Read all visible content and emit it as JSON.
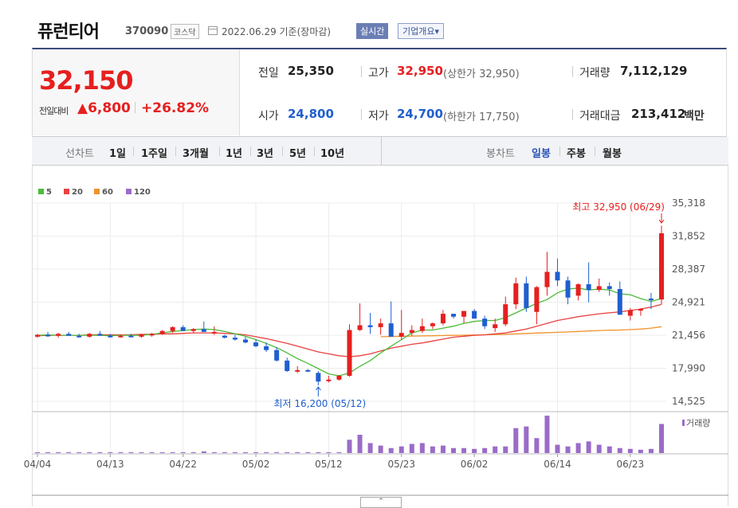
{
  "header": {
    "stock_name": "퓨런티어",
    "stock_code": "370090",
    "market": "코스닥",
    "date_text": "2022.06.29 기준(장마감)",
    "realtime_label": "실시간",
    "company_label": "기업개요▾"
  },
  "summary": {
    "price": "32,150",
    "change_label": "전일대비",
    "change": "▲6,800",
    "change_pct": "+26.82%",
    "prev_label": "전일",
    "prev": "25,350",
    "open_label": "시가",
    "open": "24,800",
    "high_label": "고가",
    "high": "32,950",
    "upper_limit": "(상한가 32,950)",
    "low_label": "저가",
    "low": "24,700",
    "lower_limit": "(하한가 17,750)",
    "volume_label": "거래량",
    "volume": "7,112,129",
    "amount_label": "거래대금",
    "amount": "213,412",
    "amount_unit": "백만"
  },
  "tabs": {
    "line_chart_label": "선차트",
    "line_periods": [
      "1일",
      "1주일",
      "3개월",
      "1년",
      "3년",
      "5년",
      "10년"
    ],
    "candle_chart_label": "봉차트",
    "candle_periods": [
      "일봉",
      "주봉",
      "월봉"
    ]
  },
  "colors": {
    "up": "#e61f1f",
    "down": "#1f5fcf",
    "ma5": "#4cbb3a",
    "ma20": "#e8413f",
    "ma60": "#f0922b",
    "ma120": "#9b6cc8",
    "volume": "#9b6cc8"
  },
  "chart_data": {
    "type": "candlestick",
    "legend": [
      "5",
      "20",
      "60",
      "120"
    ],
    "ylim": [
      14525,
      35318
    ],
    "y_ticks": [
      "35,318",
      "31,852",
      "28,387",
      "24,921",
      "21,456",
      "17,990",
      "14,525"
    ],
    "y_tick_values": [
      35318,
      31852,
      28387,
      24921,
      21456,
      17990,
      14525
    ],
    "x_tick_labels": [
      "04/04",
      "04/13",
      "04/22",
      "05/02",
      "05/12",
      "05/23",
      "06/02",
      "06/14",
      "06/23"
    ],
    "x_tick_index": [
      0,
      7,
      14,
      21,
      28,
      35,
      42,
      50,
      57
    ],
    "high_annotation": "최고 32,950 (06/29)",
    "low_annotation": "최저 16,200 (05/12)",
    "volume_label": "거래량",
    "ohlc": [
      [
        21300,
        21600,
        21200,
        21500
      ],
      [
        21500,
        21800,
        21300,
        21400
      ],
      [
        21400,
        21700,
        21200,
        21600
      ],
      [
        21600,
        21800,
        21400,
        21400
      ],
      [
        21400,
        21600,
        21200,
        21300
      ],
      [
        21300,
        21700,
        21200,
        21600
      ],
      [
        21600,
        21900,
        21400,
        21400
      ],
      [
        21400,
        21600,
        21200,
        21300
      ],
      [
        21300,
        21500,
        21200,
        21400
      ],
      [
        21400,
        21600,
        21300,
        21300
      ],
      [
        21300,
        21600,
        21200,
        21500
      ],
      [
        21500,
        21700,
        21300,
        21600
      ],
      [
        21600,
        22000,
        21500,
        21900
      ],
      [
        21900,
        22400,
        21700,
        22300
      ],
      [
        22300,
        22500,
        21900,
        21900
      ],
      [
        21900,
        22200,
        21700,
        22100
      ],
      [
        22100,
        22900,
        22000,
        21800
      ],
      [
        21800,
        22400,
        21500,
        21800
      ],
      [
        21400,
        21500,
        21100,
        21200
      ],
      [
        21200,
        21500,
        20900,
        21000
      ],
      [
        21000,
        21300,
        20600,
        20700
      ],
      [
        20700,
        21000,
        20200,
        20300
      ],
      [
        20300,
        20700,
        19700,
        19900
      ],
      [
        19900,
        20200,
        18700,
        18800
      ],
      [
        18800,
        19100,
        17600,
        17700
      ],
      [
        17700,
        18200,
        17500,
        17800
      ],
      [
        17800,
        17900,
        17600,
        17700
      ],
      [
        17500,
        17700,
        16200,
        16600
      ],
      [
        16700,
        17200,
        16500,
        16800
      ],
      [
        16800,
        17300,
        16700,
        17200
      ],
      [
        17200,
        22600,
        17100,
        22000
      ],
      [
        22000,
        24800,
        21900,
        22500
      ],
      [
        22500,
        23800,
        21600,
        22300
      ],
      [
        22300,
        23200,
        21500,
        22700
      ],
      [
        22700,
        25000,
        21400,
        21300
      ],
      [
        21300,
        24100,
        21000,
        21700
      ],
      [
        21700,
        22500,
        21400,
        22000
      ],
      [
        21900,
        23200,
        21700,
        22400
      ],
      [
        22400,
        22800,
        22100,
        22700
      ],
      [
        22700,
        24100,
        22500,
        23700
      ],
      [
        23700,
        23700,
        23200,
        23400
      ],
      [
        23400,
        24000,
        22700,
        24000
      ],
      [
        24000,
        24200,
        23200,
        23200
      ],
      [
        23200,
        23500,
        22100,
        22400
      ],
      [
        22200,
        23200,
        21800,
        22600
      ],
      [
        22600,
        25500,
        22400,
        24700
      ],
      [
        24700,
        27500,
        24200,
        26900
      ],
      [
        26900,
        27600,
        23900,
        24300
      ],
      [
        23900,
        26600,
        22600,
        26500
      ],
      [
        26500,
        30200,
        25600,
        28100
      ],
      [
        28100,
        29500,
        26600,
        27200
      ],
      [
        27200,
        27600,
        24700,
        25400
      ],
      [
        25600,
        26900,
        25100,
        26800
      ],
      [
        26800,
        29100,
        24900,
        26200
      ],
      [
        26200,
        27400,
        26000,
        26600
      ],
      [
        26600,
        27000,
        25600,
        26300
      ],
      [
        26300,
        27100,
        23800,
        23600
      ],
      [
        23500,
        24300,
        23000,
        24100
      ],
      [
        24100,
        24300,
        23500,
        24200
      ],
      [
        25300,
        25900,
        24200,
        25200
      ],
      [
        25200,
        32950,
        24700,
        32150
      ]
    ],
    "volume": [
      1,
      1,
      1,
      1,
      0,
      0,
      1,
      1,
      1,
      1,
      0,
      0,
      0,
      1,
      1,
      1,
      2,
      1,
      1,
      1,
      1,
      1,
      1,
      1,
      1,
      1,
      1,
      1,
      1,
      1,
      16,
      22,
      12,
      9,
      6,
      8,
      11,
      12,
      8,
      9,
      6,
      6,
      5,
      6,
      8,
      8,
      30,
      32,
      18,
      45,
      10,
      8,
      12,
      14,
      10,
      8,
      6,
      5,
      4,
      5,
      35
    ],
    "ma5": [
      21450,
      21500,
      21450,
      21450,
      21450,
      21450,
      21450,
      21400,
      21450,
      21450,
      21450,
      21550,
      21700,
      21850,
      21950,
      22050,
      22100,
      22050,
      21850,
      21600,
      21350,
      21000,
      20600,
      20150,
      19600,
      19000,
      18500,
      17950,
      17400,
      17200,
      17500,
      18200,
      18800,
      19600,
      20300,
      21000,
      21700,
      22000,
      22000,
      22200,
      22400,
      22700,
      22900,
      23000,
      23000,
      23300,
      23800,
      24300,
      24800,
      25200,
      25900,
      26300,
      26400,
      26200,
      26300,
      26200,
      25800,
      25700,
      25300,
      25000,
      25300
    ],
    "ma20": [
      21400,
      21450,
      21450,
      21450,
      21450,
      21500,
      21500,
      21500,
      21500,
      21500,
      21550,
      21550,
      21600,
      21600,
      21650,
      21700,
      21700,
      21700,
      21650,
      21600,
      21500,
      21300,
      21100,
      20850,
      20600,
      20300,
      20000,
      19700,
      19500,
      19300,
      19200,
      19300,
      19500,
      19800,
      20100,
      20300,
      20500,
      20650,
      20850,
      21050,
      21250,
      21350,
      21450,
      21500,
      21600,
      21700,
      21900,
      22100,
      22400,
      22700,
      23000,
      23200,
      23400,
      23550,
      23700,
      23800,
      23900,
      24050,
      24200,
      24400,
      24700
    ],
    "ma60": [
      null,
      null,
      null,
      null,
      null,
      null,
      null,
      null,
      null,
      null,
      null,
      null,
      null,
      null,
      null,
      null,
      null,
      null,
      null,
      null,
      null,
      null,
      null,
      null,
      null,
      null,
      null,
      null,
      null,
      null,
      null,
      null,
      null,
      21300,
      21320,
      21340,
      21360,
      21380,
      21400,
      21420,
      21440,
      21460,
      21480,
      21500,
      21530,
      21560,
      21600,
      21640,
      21680,
      21720,
      21760,
      21800,
      21850,
      21900,
      21950,
      21980,
      22000,
      22050,
      22100,
      22200,
      22350
    ]
  }
}
